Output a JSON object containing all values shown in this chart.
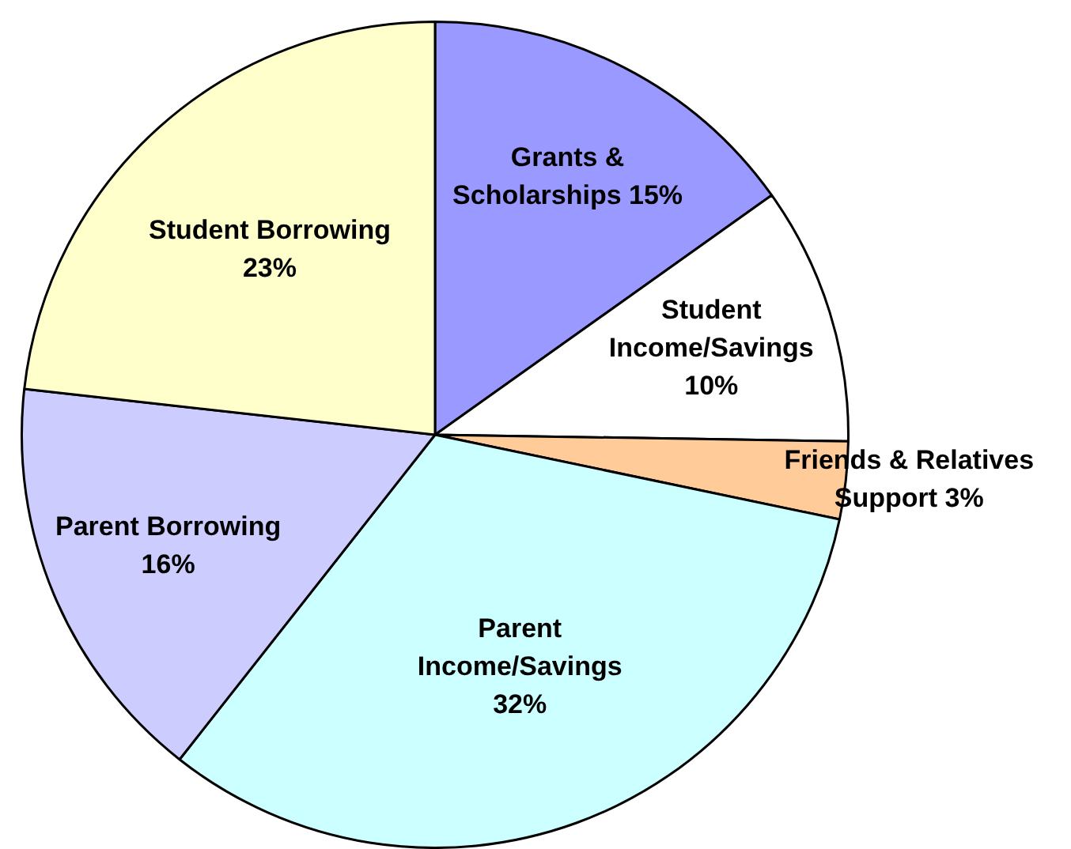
{
  "chart_data": {
    "type": "pie",
    "categories": [
      "Grants & Scholarships",
      "Student Income/Savings",
      "Friends & Relatives Support",
      "Parent Income/Savings",
      "Parent Borrowing",
      "Student Borrowing"
    ],
    "values": [
      15,
      10,
      3,
      32,
      16,
      23
    ],
    "value_labels": [
      "15%",
      "10%",
      "3%",
      "32%",
      "16%",
      "23%"
    ],
    "colors": [
      "#9999ff",
      "#ffffff",
      "#ffcc99",
      "#ccffff",
      "#ccccff",
      "#ffffcc"
    ],
    "data_labels": true,
    "legend": false
  }
}
